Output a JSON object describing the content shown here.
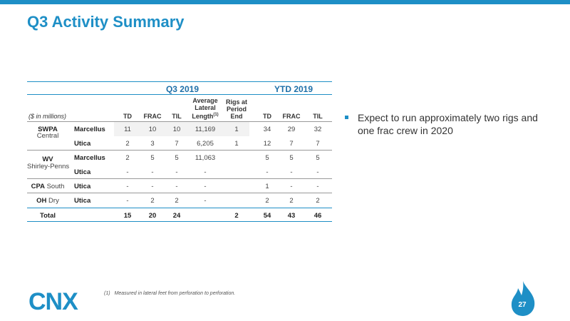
{
  "title": "Q3 Activity Summary",
  "table": {
    "group_q3": "Q3 2019",
    "group_ytd": "YTD 2019",
    "units": "($ in millions)",
    "headers": {
      "td": "TD",
      "frac": "FRAC",
      "til": "TIL",
      "lateral_line1": "Average",
      "lateral_line2": "Lateral",
      "lateral_line3": "Length",
      "lateral_sup": "(1)",
      "rigs_line1": "Rigs at",
      "rigs_line2": "Period",
      "rigs_line3": "End",
      "ytd_td": "TD",
      "ytd_frac": "FRAC",
      "ytd_til": "TIL"
    },
    "regions": {
      "swpa_bold": "SWPA",
      "swpa_sub": "Central",
      "wv_bold": "WV",
      "wv_sub": "Shirley-Penns",
      "cpa_bold": "CPA",
      "cpa_sub": "South",
      "oh_bold": "OH",
      "oh_sub": "Dry"
    },
    "rows": [
      {
        "play": "Marcellus",
        "td": "11",
        "frac": "10",
        "til": "10",
        "len": "11,169",
        "rig": "1",
        "ytd_td": "34",
        "ytd_frac": "29",
        "ytd_til": "32"
      },
      {
        "play": "Utica",
        "td": "2",
        "frac": "3",
        "til": "7",
        "len": "6,205",
        "rig": "1",
        "ytd_td": "12",
        "ytd_frac": "7",
        "ytd_til": "7"
      },
      {
        "play": "Marcellus",
        "td": "2",
        "frac": "5",
        "til": "5",
        "len": "11,063",
        "rig": "",
        "ytd_td": "5",
        "ytd_frac": "5",
        "ytd_til": "5"
      },
      {
        "play": "Utica",
        "td": "-",
        "frac": "-",
        "til": "-",
        "len": "-",
        "rig": "",
        "ytd_td": "-",
        "ytd_frac": "-",
        "ytd_til": "-"
      },
      {
        "play": "Utica",
        "td": "-",
        "frac": "-",
        "til": "-",
        "len": "-",
        "rig": "",
        "ytd_td": "1",
        "ytd_frac": "-",
        "ytd_til": "-"
      },
      {
        "play": "Utica",
        "td": "-",
        "frac": "2",
        "til": "2",
        "len": "-",
        "rig": "",
        "ytd_td": "2",
        "ytd_frac": "2",
        "ytd_til": "2"
      }
    ],
    "total": {
      "label": "Total",
      "td": "15",
      "frac": "20",
      "til": "24",
      "rig": "2",
      "ytd_td": "54",
      "ytd_frac": "43",
      "ytd_til": "46"
    }
  },
  "bullet": "Expect to run approximately two rigs and one frac crew in 2020",
  "footnote_mark": "(1)",
  "footnote": "Measured in lateral feet from perforation to perforation.",
  "logo_text": "CNX",
  "page_number": "27",
  "colors": {
    "accent": "#1e8fc6",
    "dark_accent": "#1e6fa8"
  }
}
